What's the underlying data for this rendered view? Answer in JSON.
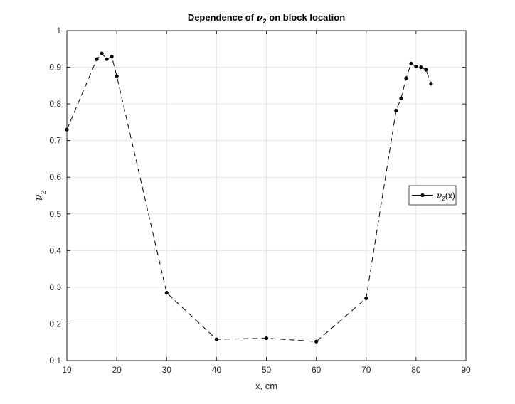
{
  "chart_data": {
    "type": "line",
    "title": {
      "prefix": "Dependence of ",
      "symbol": "ν",
      "subscript": "2",
      "suffix": " on block location"
    },
    "xlabel": "x, cm",
    "ylabel": {
      "symbol": "ν",
      "subscript": "2"
    },
    "xlim": [
      10,
      90
    ],
    "ylim": [
      0.1,
      1.0
    ],
    "xticks": [
      10,
      20,
      30,
      40,
      50,
      60,
      70,
      80,
      90
    ],
    "yticks": [
      0.1,
      0.2,
      0.3,
      0.4,
      0.5,
      0.6,
      0.7,
      0.8,
      0.9,
      1.0
    ],
    "ytick_labels": [
      "0.1",
      "0.2",
      "0.3",
      "0.4",
      "0.5",
      "0.6",
      "0.7",
      "0.8",
      "0.9",
      "1"
    ],
    "grid": true,
    "legend_position": "right",
    "series": [
      {
        "name": {
          "symbol": "ν",
          "subscript": "2",
          "suffix": "(x)"
        },
        "line_style": "dashed",
        "marker": "filled-circle",
        "color": "#000000",
        "x": [
          10,
          16,
          17,
          18,
          19,
          20,
          30,
          40,
          50,
          60,
          70,
          76,
          77,
          78,
          79,
          80,
          81,
          82,
          83
        ],
        "y": [
          0.73,
          0.922,
          0.938,
          0.922,
          0.929,
          0.876,
          0.285,
          0.158,
          0.161,
          0.152,
          0.27,
          0.782,
          0.815,
          0.87,
          0.91,
          0.902,
          0.9,
          0.893,
          0.855
        ]
      }
    ]
  }
}
